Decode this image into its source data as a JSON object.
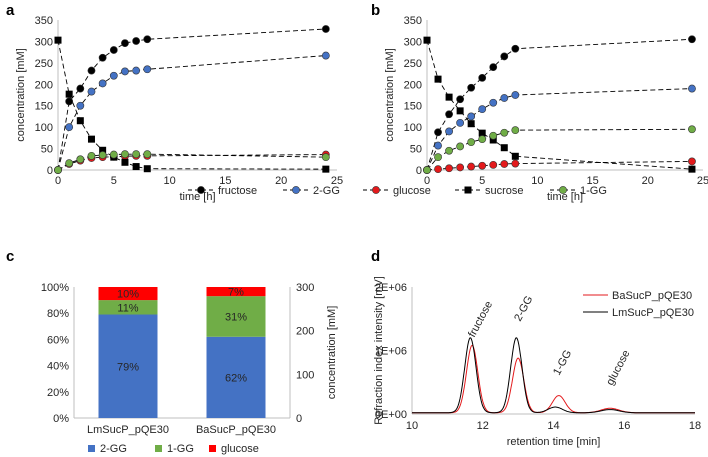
{
  "chart_data": [
    {
      "panel": "a",
      "type": "line",
      "xlabel": "time [h]",
      "ylabel": "concentration [mM]",
      "xlim": [
        0,
        25
      ],
      "ylim": [
        0,
        350
      ],
      "xticks": [
        0,
        5,
        10,
        15,
        20,
        25
      ],
      "yticks": [
        0,
        50,
        100,
        150,
        200,
        250,
        300,
        350
      ],
      "series": [
        {
          "name": "fructose",
          "marker": "circle",
          "color": "#000000",
          "x": [
            0,
            1,
            2,
            3,
            4,
            5,
            6,
            7,
            8,
            24
          ],
          "y": [
            0,
            160,
            190,
            232,
            262,
            280,
            296,
            301,
            305,
            329
          ]
        },
        {
          "name": "2-GG",
          "marker": "circle",
          "color": "#4472c4",
          "x": [
            0,
            1,
            2,
            3,
            4,
            5,
            6,
            7,
            8,
            24
          ],
          "y": [
            0,
            100,
            150,
            183,
            202,
            220,
            230,
            232,
            235,
            267
          ]
        },
        {
          "name": "glucose",
          "marker": "circle",
          "color": "#e31a1c",
          "x": [
            0,
            1,
            2,
            3,
            4,
            5,
            6,
            7,
            8,
            24
          ],
          "y": [
            0,
            14,
            22,
            28,
            30,
            31,
            32,
            33,
            33,
            36
          ]
        },
        {
          "name": "sucrose",
          "marker": "square",
          "color": "#000000",
          "x": [
            0,
            1,
            2,
            3,
            4,
            5,
            6,
            7,
            8,
            24
          ],
          "y": [
            303,
            177,
            115,
            72,
            46,
            30,
            18,
            8,
            3,
            2
          ]
        },
        {
          "name": "1-GG",
          "marker": "circle",
          "color": "#70ad47",
          "x": [
            0,
            1,
            2,
            3,
            4,
            5,
            6,
            7,
            8,
            24
          ],
          "y": [
            0,
            16,
            25,
            33,
            35,
            36,
            37,
            37,
            37,
            30
          ]
        }
      ]
    },
    {
      "panel": "b",
      "type": "line",
      "xlabel": "time [h]",
      "ylabel": "concentration [mM]",
      "xlim": [
        0,
        25
      ],
      "ylim": [
        0,
        350
      ],
      "xticks": [
        0,
        5,
        10,
        15,
        20,
        25
      ],
      "yticks": [
        0,
        50,
        100,
        150,
        200,
        250,
        300,
        350
      ],
      "series": [
        {
          "name": "fructose",
          "marker": "circle",
          "color": "#000000",
          "x": [
            0,
            1,
            2,
            3,
            4,
            5,
            6,
            7,
            8,
            24
          ],
          "y": [
            0,
            88,
            130,
            165,
            192,
            215,
            240,
            265,
            283,
            305
          ]
        },
        {
          "name": "2-GG",
          "marker": "circle",
          "color": "#4472c4",
          "x": [
            0,
            1,
            2,
            3,
            4,
            5,
            6,
            7,
            8,
            24
          ],
          "y": [
            0,
            57,
            90,
            110,
            125,
            142,
            157,
            168,
            175,
            190
          ]
        },
        {
          "name": "glucose",
          "marker": "circle",
          "color": "#e31a1c",
          "x": [
            0,
            1,
            2,
            3,
            4,
            5,
            6,
            7,
            8,
            24
          ],
          "y": [
            0,
            2,
            4,
            6,
            8,
            10,
            12,
            14,
            15,
            20
          ]
        },
        {
          "name": "sucrose",
          "marker": "square",
          "color": "#000000",
          "x": [
            0,
            1,
            2,
            3,
            4,
            5,
            6,
            7,
            8,
            24
          ],
          "y": [
            303,
            212,
            170,
            138,
            108,
            86,
            70,
            52,
            32,
            2
          ]
        },
        {
          "name": "1-GG",
          "marker": "circle",
          "color": "#70ad47",
          "x": [
            0,
            1,
            2,
            3,
            4,
            5,
            6,
            7,
            8,
            24
          ],
          "y": [
            0,
            30,
            45,
            55,
            65,
            72,
            80,
            87,
            93,
            95
          ]
        }
      ]
    },
    {
      "panel": "c",
      "type": "bar",
      "stacked": true,
      "categories": [
        "LmSucP_pQE30",
        "BaSucP_pQE30"
      ],
      "left_axis_ticks": [
        "0%",
        "20%",
        "40%",
        "60%",
        "80%",
        "100%"
      ],
      "right_axis_ticks": [
        0,
        100,
        200,
        300
      ],
      "right_ylabel": "concentration [mM]",
      "series": [
        {
          "name": "2-GG",
          "color": "#4472c4",
          "values": [
            79,
            62
          ],
          "labels": [
            "79%",
            "62%"
          ]
        },
        {
          "name": "1-GG",
          "color": "#70ad47",
          "values": [
            11,
            31
          ],
          "labels": [
            "11%",
            "31%"
          ]
        },
        {
          "name": "glucose",
          "color": "#ff0000",
          "values": [
            10,
            7
          ],
          "labels": [
            "10%",
            "7%"
          ]
        }
      ]
    },
    {
      "panel": "d",
      "type": "line",
      "xlabel": "retention time [min]",
      "ylabel": "Refraction index intensity [mV]",
      "xlim": [
        10,
        18
      ],
      "xticks": [
        10,
        12,
        14,
        16,
        18
      ],
      "ylim": [
        0,
        2
      ],
      "ytick_values": [
        0,
        1,
        2
      ],
      "ytick_labels": [
        "0E+00",
        "1E+06",
        "2E+06"
      ],
      "legend": "top-right",
      "peak_annotations": [
        {
          "text": "fructose",
          "x": 11.7
        },
        {
          "text": "2-GG",
          "x": 13.0
        },
        {
          "text": "1-GG",
          "x": 14.1
        },
        {
          "text": "glucose",
          "x": 15.6
        }
      ],
      "series": [
        {
          "name": "BaSucP_pQE30",
          "color": "#e31a1c",
          "peaks": [
            {
              "center": 11.7,
              "height": 1.06,
              "width": 0.16
            },
            {
              "center": 13.0,
              "height": 0.86,
              "width": 0.16
            },
            {
              "center": 14.15,
              "height": 0.27,
              "width": 0.18
            },
            {
              "center": 15.6,
              "height": 0.07,
              "width": 0.25
            }
          ],
          "baseline": 0.02
        },
        {
          "name": "LmSucP_pQE30",
          "color": "#000000",
          "peaks": [
            {
              "center": 11.65,
              "height": 1.18,
              "width": 0.16
            },
            {
              "center": 12.95,
              "height": 1.18,
              "width": 0.16
            },
            {
              "center": 14.05,
              "height": 0.09,
              "width": 0.2
            },
            {
              "center": 15.6,
              "height": 0.05,
              "width": 0.25
            }
          ],
          "baseline": 0.02
        }
      ]
    }
  ],
  "legend_ab": [
    {
      "name": "fructose",
      "marker": "circle",
      "color": "#000000"
    },
    {
      "name": "2-GG",
      "marker": "circle",
      "color": "#4472c4"
    },
    {
      "name": "glucose",
      "marker": "circle",
      "color": "#e31a1c"
    },
    {
      "name": "sucrose",
      "marker": "square",
      "color": "#000000"
    },
    {
      "name": "1-GG",
      "marker": "circle",
      "color": "#70ad47"
    }
  ],
  "panel_labels": [
    "a",
    "b",
    "c",
    "d"
  ],
  "colors": {
    "axis": "#bfbfbf",
    "text": "#262626"
  }
}
